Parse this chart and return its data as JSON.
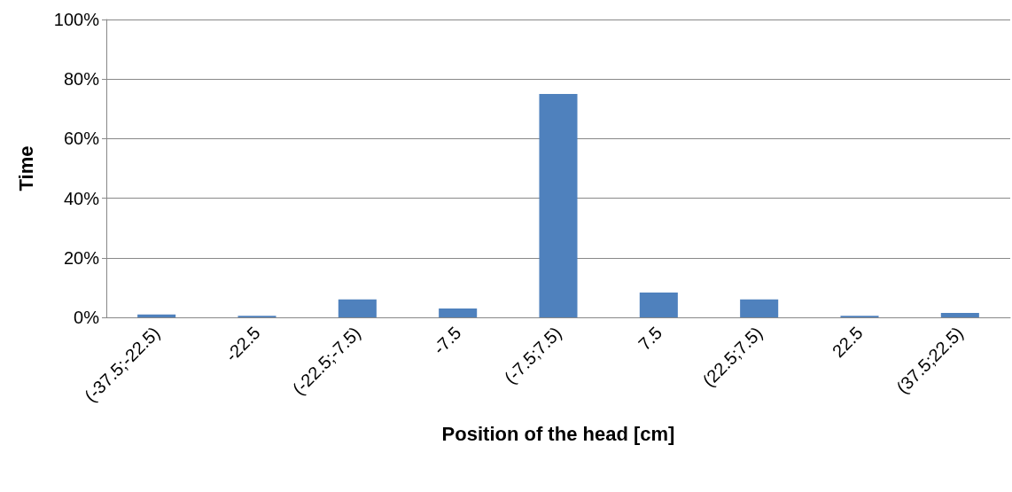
{
  "chart_data": {
    "type": "bar",
    "xlabel": "Position of the head [cm]",
    "ylabel": "Time",
    "categories": [
      "(-37.5;-22.5)",
      "-22.5",
      "(-22.5;-7.5)",
      "-7.5",
      "(-7.5;7.5)",
      "7.5",
      "(22.5;7.5)",
      "22.5",
      "(37.5;22.5)"
    ],
    "values": [
      1,
      0.5,
      6,
      3,
      75,
      8.3,
      6,
      0.5,
      1.5
    ],
    "color": "#4f81bd",
    "ylim": [
      0,
      100
    ],
    "yticks": [
      {
        "value": 0,
        "label": "0%"
      },
      {
        "value": 20,
        "label": "20%"
      },
      {
        "value": 40,
        "label": "40%"
      },
      {
        "value": 60,
        "label": "60%"
      },
      {
        "value": 80,
        "label": "80%"
      },
      {
        "value": 100,
        "label": "100%"
      }
    ],
    "grid": "y"
  }
}
